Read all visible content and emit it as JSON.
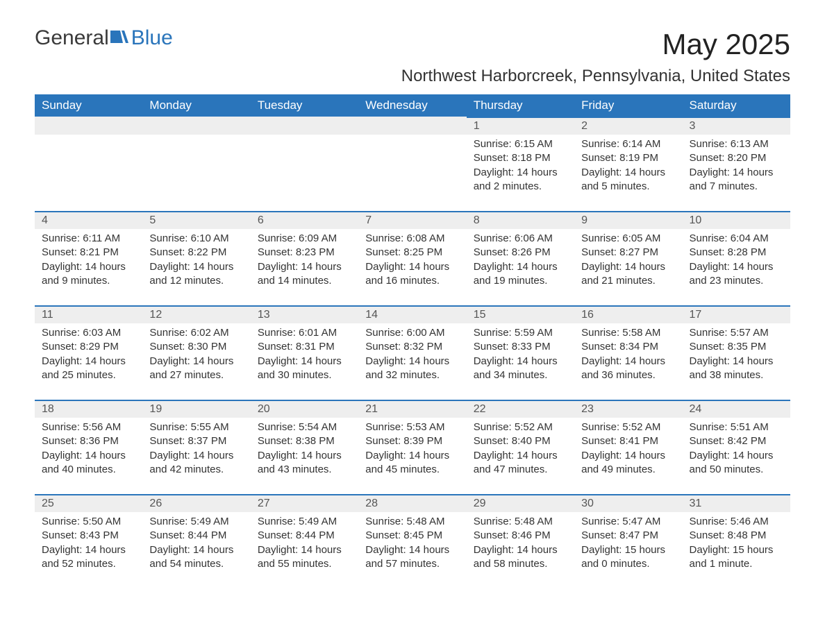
{
  "logo": {
    "general": "General",
    "blue": "Blue"
  },
  "title": "May 2025",
  "location": "Northwest Harborcreek, Pennsylvania, United States",
  "colors": {
    "header_bg": "#2a75bb",
    "header_text": "#ffffff",
    "daybar_bg": "#eeeeee",
    "daybar_border": "#2a75bb",
    "body_text": "#333333",
    "logo_blue": "#2a75bb"
  },
  "typography": {
    "title_fontsize": 42,
    "location_fontsize": 24,
    "header_fontsize": 17,
    "body_fontsize": 15
  },
  "weekdays": [
    "Sunday",
    "Monday",
    "Tuesday",
    "Wednesday",
    "Thursday",
    "Friday",
    "Saturday"
  ],
  "layout": {
    "first_day_column": 4,
    "days_in_month": 31
  },
  "weeks": [
    [
      null,
      null,
      null,
      null,
      {
        "n": "1",
        "sunrise": "Sunrise: 6:15 AM",
        "sunset": "Sunset: 8:18 PM",
        "daylight": "Daylight: 14 hours and 2 minutes."
      },
      {
        "n": "2",
        "sunrise": "Sunrise: 6:14 AM",
        "sunset": "Sunset: 8:19 PM",
        "daylight": "Daylight: 14 hours and 5 minutes."
      },
      {
        "n": "3",
        "sunrise": "Sunrise: 6:13 AM",
        "sunset": "Sunset: 8:20 PM",
        "daylight": "Daylight: 14 hours and 7 minutes."
      }
    ],
    [
      {
        "n": "4",
        "sunrise": "Sunrise: 6:11 AM",
        "sunset": "Sunset: 8:21 PM",
        "daylight": "Daylight: 14 hours and 9 minutes."
      },
      {
        "n": "5",
        "sunrise": "Sunrise: 6:10 AM",
        "sunset": "Sunset: 8:22 PM",
        "daylight": "Daylight: 14 hours and 12 minutes."
      },
      {
        "n": "6",
        "sunrise": "Sunrise: 6:09 AM",
        "sunset": "Sunset: 8:23 PM",
        "daylight": "Daylight: 14 hours and 14 minutes."
      },
      {
        "n": "7",
        "sunrise": "Sunrise: 6:08 AM",
        "sunset": "Sunset: 8:25 PM",
        "daylight": "Daylight: 14 hours and 16 minutes."
      },
      {
        "n": "8",
        "sunrise": "Sunrise: 6:06 AM",
        "sunset": "Sunset: 8:26 PM",
        "daylight": "Daylight: 14 hours and 19 minutes."
      },
      {
        "n": "9",
        "sunrise": "Sunrise: 6:05 AM",
        "sunset": "Sunset: 8:27 PM",
        "daylight": "Daylight: 14 hours and 21 minutes."
      },
      {
        "n": "10",
        "sunrise": "Sunrise: 6:04 AM",
        "sunset": "Sunset: 8:28 PM",
        "daylight": "Daylight: 14 hours and 23 minutes."
      }
    ],
    [
      {
        "n": "11",
        "sunrise": "Sunrise: 6:03 AM",
        "sunset": "Sunset: 8:29 PM",
        "daylight": "Daylight: 14 hours and 25 minutes."
      },
      {
        "n": "12",
        "sunrise": "Sunrise: 6:02 AM",
        "sunset": "Sunset: 8:30 PM",
        "daylight": "Daylight: 14 hours and 27 minutes."
      },
      {
        "n": "13",
        "sunrise": "Sunrise: 6:01 AM",
        "sunset": "Sunset: 8:31 PM",
        "daylight": "Daylight: 14 hours and 30 minutes."
      },
      {
        "n": "14",
        "sunrise": "Sunrise: 6:00 AM",
        "sunset": "Sunset: 8:32 PM",
        "daylight": "Daylight: 14 hours and 32 minutes."
      },
      {
        "n": "15",
        "sunrise": "Sunrise: 5:59 AM",
        "sunset": "Sunset: 8:33 PM",
        "daylight": "Daylight: 14 hours and 34 minutes."
      },
      {
        "n": "16",
        "sunrise": "Sunrise: 5:58 AM",
        "sunset": "Sunset: 8:34 PM",
        "daylight": "Daylight: 14 hours and 36 minutes."
      },
      {
        "n": "17",
        "sunrise": "Sunrise: 5:57 AM",
        "sunset": "Sunset: 8:35 PM",
        "daylight": "Daylight: 14 hours and 38 minutes."
      }
    ],
    [
      {
        "n": "18",
        "sunrise": "Sunrise: 5:56 AM",
        "sunset": "Sunset: 8:36 PM",
        "daylight": "Daylight: 14 hours and 40 minutes."
      },
      {
        "n": "19",
        "sunrise": "Sunrise: 5:55 AM",
        "sunset": "Sunset: 8:37 PM",
        "daylight": "Daylight: 14 hours and 42 minutes."
      },
      {
        "n": "20",
        "sunrise": "Sunrise: 5:54 AM",
        "sunset": "Sunset: 8:38 PM",
        "daylight": "Daylight: 14 hours and 43 minutes."
      },
      {
        "n": "21",
        "sunrise": "Sunrise: 5:53 AM",
        "sunset": "Sunset: 8:39 PM",
        "daylight": "Daylight: 14 hours and 45 minutes."
      },
      {
        "n": "22",
        "sunrise": "Sunrise: 5:52 AM",
        "sunset": "Sunset: 8:40 PM",
        "daylight": "Daylight: 14 hours and 47 minutes."
      },
      {
        "n": "23",
        "sunrise": "Sunrise: 5:52 AM",
        "sunset": "Sunset: 8:41 PM",
        "daylight": "Daylight: 14 hours and 49 minutes."
      },
      {
        "n": "24",
        "sunrise": "Sunrise: 5:51 AM",
        "sunset": "Sunset: 8:42 PM",
        "daylight": "Daylight: 14 hours and 50 minutes."
      }
    ],
    [
      {
        "n": "25",
        "sunrise": "Sunrise: 5:50 AM",
        "sunset": "Sunset: 8:43 PM",
        "daylight": "Daylight: 14 hours and 52 minutes."
      },
      {
        "n": "26",
        "sunrise": "Sunrise: 5:49 AM",
        "sunset": "Sunset: 8:44 PM",
        "daylight": "Daylight: 14 hours and 54 minutes."
      },
      {
        "n": "27",
        "sunrise": "Sunrise: 5:49 AM",
        "sunset": "Sunset: 8:44 PM",
        "daylight": "Daylight: 14 hours and 55 minutes."
      },
      {
        "n": "28",
        "sunrise": "Sunrise: 5:48 AM",
        "sunset": "Sunset: 8:45 PM",
        "daylight": "Daylight: 14 hours and 57 minutes."
      },
      {
        "n": "29",
        "sunrise": "Sunrise: 5:48 AM",
        "sunset": "Sunset: 8:46 PM",
        "daylight": "Daylight: 14 hours and 58 minutes."
      },
      {
        "n": "30",
        "sunrise": "Sunrise: 5:47 AM",
        "sunset": "Sunset: 8:47 PM",
        "daylight": "Daylight: 15 hours and 0 minutes."
      },
      {
        "n": "31",
        "sunrise": "Sunrise: 5:46 AM",
        "sunset": "Sunset: 8:48 PM",
        "daylight": "Daylight: 15 hours and 1 minute."
      }
    ]
  ]
}
